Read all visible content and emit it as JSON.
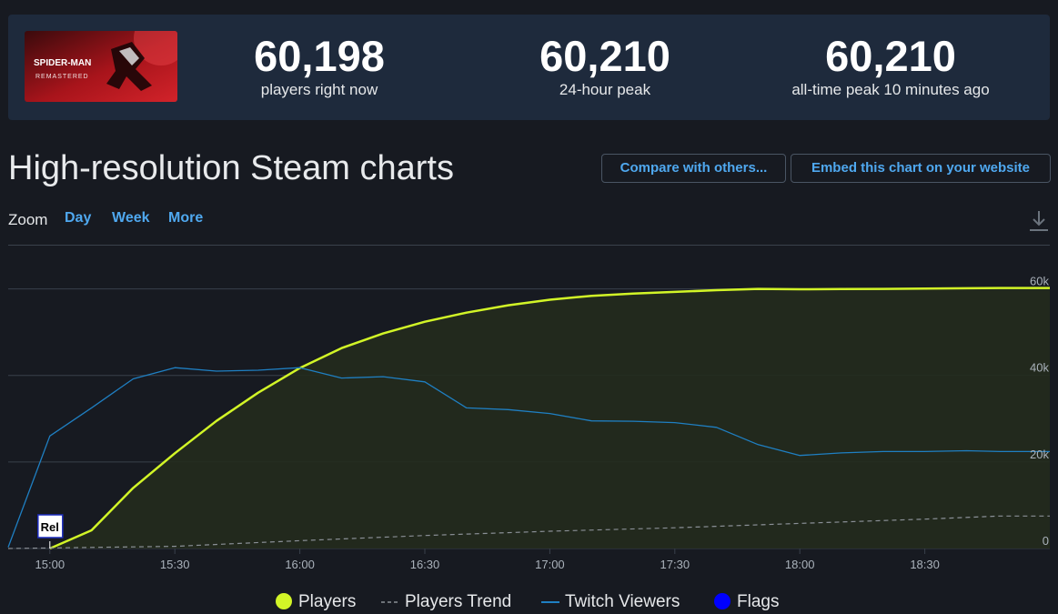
{
  "game": {
    "logo_line1": "SPIDER-MAN",
    "logo_line2": "REMASTERED"
  },
  "stats": [
    {
      "value": "60,198",
      "label": "players right now"
    },
    {
      "value": "60,210",
      "label": "24-hour peak"
    },
    {
      "value": "60,210",
      "label": "all-time peak 10 minutes ago"
    }
  ],
  "page": {
    "title": "High-resolution Steam charts",
    "compare_button": "Compare with others...",
    "embed_button": "Embed this chart on your website"
  },
  "zoom": {
    "label": "Zoom",
    "options": [
      "Day",
      "Week",
      "More"
    ]
  },
  "colors": {
    "players": "#d2f527",
    "players_area": "#232b1d",
    "twitch": "#1f7fc2",
    "trend": "#8a8f96",
    "flags": "#0000ff",
    "grid": "#39404b",
    "accent_link": "#4fa8ef"
  },
  "chart_data": {
    "type": "line",
    "x_unit": "time (HH:MM)",
    "xlim": [
      "14:50",
      "19:00"
    ],
    "ylim": [
      0,
      70000
    ],
    "x_ticks": [
      "15:00",
      "15:30",
      "16:00",
      "16:30",
      "17:00",
      "17:30",
      "18:00",
      "18:30"
    ],
    "y_ticks": [
      {
        "value": 0,
        "label": "0"
      },
      {
        "value": 20000,
        "label": "20k"
      },
      {
        "value": 40000,
        "label": "40k"
      },
      {
        "value": 60000,
        "label": "60k"
      }
    ],
    "grid": true,
    "legend_position": "bottom-center",
    "series": [
      {
        "name": "Players",
        "style": "area-line",
        "points": [
          [
            "15:00",
            0
          ],
          [
            "15:10",
            4200
          ],
          [
            "15:20",
            14000
          ],
          [
            "15:30",
            22000
          ],
          [
            "15:40",
            29500
          ],
          [
            "15:50",
            36000
          ],
          [
            "16:00",
            41700
          ],
          [
            "16:10",
            46300
          ],
          [
            "16:20",
            49700
          ],
          [
            "16:30",
            52400
          ],
          [
            "16:40",
            54500
          ],
          [
            "16:50",
            56200
          ],
          [
            "17:00",
            57500
          ],
          [
            "17:10",
            58400
          ],
          [
            "17:20",
            58900
          ],
          [
            "17:30",
            59300
          ],
          [
            "17:40",
            59700
          ],
          [
            "17:50",
            60000
          ],
          [
            "18:00",
            59900
          ],
          [
            "18:10",
            59950
          ],
          [
            "18:20",
            60000
          ],
          [
            "18:30",
            60050
          ],
          [
            "18:40",
            60150
          ],
          [
            "18:48",
            60198
          ]
        ]
      },
      {
        "name": "Players Trend",
        "style": "dashed",
        "points": [
          [
            "14:50",
            0
          ],
          [
            "15:30",
            500
          ],
          [
            "16:00",
            1800
          ],
          [
            "16:30",
            3000
          ],
          [
            "17:00",
            4000
          ],
          [
            "17:30",
            4800
          ],
          [
            "18:00",
            5800
          ],
          [
            "18:30",
            6800
          ],
          [
            "18:48",
            7500
          ]
        ]
      },
      {
        "name": "Twitch Viewers",
        "style": "line",
        "points": [
          [
            "14:50",
            300
          ],
          [
            "15:00",
            26000
          ],
          [
            "15:10",
            32500
          ],
          [
            "15:20",
            39200
          ],
          [
            "15:30",
            41800
          ],
          [
            "15:40",
            41000
          ],
          [
            "15:50",
            41200
          ],
          [
            "16:00",
            41800
          ],
          [
            "16:10",
            39400
          ],
          [
            "16:20",
            39700
          ],
          [
            "16:30",
            38500
          ],
          [
            "16:40",
            32500
          ],
          [
            "16:50",
            32100
          ],
          [
            "17:00",
            31200
          ],
          [
            "17:10",
            29500
          ],
          [
            "17:20",
            29400
          ],
          [
            "17:30",
            29100
          ],
          [
            "17:40",
            28000
          ],
          [
            "17:50",
            24000
          ],
          [
            "18:00",
            21500
          ],
          [
            "18:10",
            22100
          ],
          [
            "18:20",
            22400
          ],
          [
            "18:30",
            22400
          ],
          [
            "18:40",
            22600
          ],
          [
            "18:48",
            22400
          ]
        ]
      },
      {
        "name": "Flags",
        "style": "flag",
        "points": [
          [
            "15:00",
            0
          ]
        ],
        "labels": [
          "Rel"
        ]
      }
    ]
  }
}
